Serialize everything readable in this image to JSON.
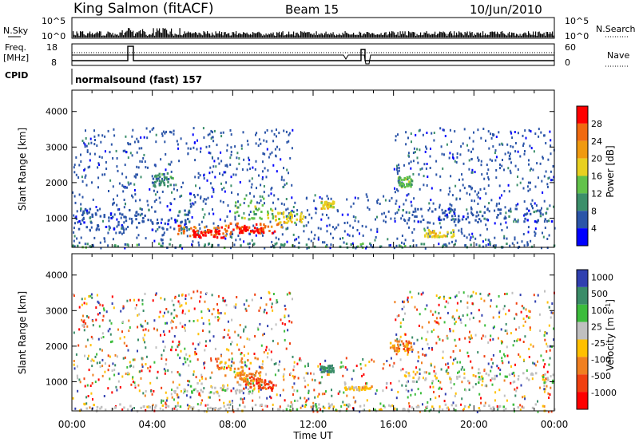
{
  "header": {
    "station": "King Salmon (fitACF)",
    "beam": "Beam 15",
    "date": "10/Jun/2010"
  },
  "top_panels": {
    "nsky_label": "N.Sky",
    "nsky_ticks": [
      "10^5",
      "10^0"
    ],
    "nsearch_label": "N.Search",
    "nsearch_ticks": [
      "10^5",
      "10^0"
    ],
    "freq_label_1": "Freq.",
    "freq_label_2": "[MHz]",
    "freq_ticks": [
      "18",
      "8"
    ],
    "nave_label": "Nave",
    "nave_ticks": [
      "60",
      "0"
    ],
    "cpid_label": "CPID",
    "cpid_text": "normalsound (fast) 157"
  },
  "colors": {
    "power": [
      "#0000ff",
      "#2b55a8",
      "#3b8f6a",
      "#62c24a",
      "#e8d020",
      "#f09a10",
      "#f06a10",
      "#ff0000"
    ],
    "velocity": [
      "#3040b0",
      "#3a8c68",
      "#3cbc3c",
      "#c0c0c0",
      "#ffc000",
      "#f08020",
      "#f04010",
      "#ff0000"
    ]
  },
  "chart_data": [
    {
      "type": "heatmap",
      "quantity": "Power",
      "xlabel": "Time UT",
      "ylabel": "Slant Range [km]",
      "xlim_hours": [
        0,
        24
      ],
      "ylim": [
        180,
        4600
      ],
      "x_ticks": [
        "00:00",
        "04:00",
        "08:00",
        "12:00",
        "16:00",
        "20:00",
        "00:00"
      ],
      "y_ticks": [
        1000,
        2000,
        3000,
        4000
      ],
      "colorbar_label": "Power [dB]",
      "colorbar_ticks": [
        "28",
        "24",
        "20",
        "16",
        "12",
        "8",
        "4"
      ],
      "colorbar_range": [
        0,
        32
      ],
      "patches": [
        {
          "t": [
            0.0,
            24.0
          ],
          "r": [
            200,
            320
          ],
          "level": 2
        },
        {
          "t": [
            0.2,
            6.0
          ],
          "r": [
            700,
            1300
          ],
          "level": 1
        },
        {
          "t": [
            5.2,
            8.0
          ],
          "r": [
            520,
            820
          ],
          "level": 6
        },
        {
          "t": [
            6.0,
            7.5
          ],
          "r": [
            480,
            700
          ],
          "level": 7
        },
        {
          "t": [
            7.5,
            10.5
          ],
          "r": [
            600,
            900
          ],
          "level": 6
        },
        {
          "t": [
            8.2,
            9.5
          ],
          "r": [
            620,
            780
          ],
          "level": 7
        },
        {
          "t": [
            8.0,
            10.0
          ],
          "r": [
            1000,
            1600
          ],
          "level": 3
        },
        {
          "t": [
            10.0,
            11.5
          ],
          "r": [
            900,
            1200
          ],
          "level": 4
        },
        {
          "t": [
            12.3,
            13.0
          ],
          "r": [
            1300,
            1500
          ],
          "level": 4
        },
        {
          "t": [
            16.2,
            16.9
          ],
          "r": [
            1900,
            2200
          ],
          "level": 3
        },
        {
          "t": [
            17.5,
            19.0
          ],
          "r": [
            500,
            700
          ],
          "level": 4
        },
        {
          "t": [
            16.0,
            24.0
          ],
          "r": [
            900,
            1300
          ],
          "level": 1
        },
        {
          "t": [
            4.0,
            5.0
          ],
          "r": [
            1900,
            2300
          ],
          "level": 2
        }
      ]
    },
    {
      "type": "heatmap",
      "quantity": "Velocity",
      "xlabel": "Time UT",
      "ylabel": "Slant Range [km]",
      "xlim_hours": [
        0,
        24
      ],
      "ylim": [
        180,
        4600
      ],
      "x_ticks": [
        "00:00",
        "04:00",
        "08:00",
        "12:00",
        "16:00",
        "20:00",
        "00:00"
      ],
      "y_ticks": [
        1000,
        2000,
        3000,
        4000
      ],
      "colorbar_label": "Velocity [m s^-1]",
      "colorbar_ticks": [
        "1000",
        "500",
        "100",
        "25",
        "-25",
        "-100",
        "-500",
        "-1000"
      ],
      "colorbar_range": [
        -1200,
        1200
      ],
      "patches": [
        {
          "t": [
            5.0,
            9.0
          ],
          "r": [
            700,
            1000
          ],
          "level": 3
        },
        {
          "t": [
            7.0,
            9.5
          ],
          "r": [
            1200,
            1700
          ],
          "level": 5
        },
        {
          "t": [
            8.5,
            10.0
          ],
          "r": [
            800,
            1100
          ],
          "level": 6
        },
        {
          "t": [
            8.0,
            9.5
          ],
          "r": [
            1000,
            1300
          ],
          "level": 5
        },
        {
          "t": [
            12.3,
            13.0
          ],
          "r": [
            1300,
            1500
          ],
          "level": 1
        },
        {
          "t": [
            15.8,
            16.9
          ],
          "r": [
            1900,
            2200
          ],
          "level": 5
        },
        {
          "t": [
            13.5,
            15.0
          ],
          "r": [
            800,
            900
          ],
          "level": 4
        },
        {
          "t": [
            0.0,
            24.0
          ],
          "r": [
            200,
            400
          ],
          "level": 3
        },
        {
          "t": [
            16.5,
            24.0
          ],
          "r": [
            1000,
            1300
          ],
          "level": 3
        }
      ]
    }
  ]
}
